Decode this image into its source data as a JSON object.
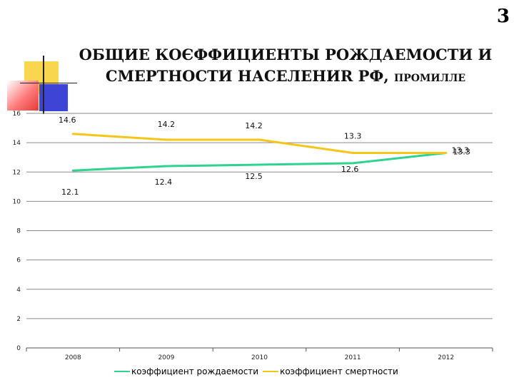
{
  "slide_number": "3",
  "title_line1": "ОБЩИЕ КОЄФФИЦИЕНТЫ РОЖДАЕМОСТИ И",
  "title_line2": "СМЕРТНОСТИ НАСЕЛЕНИR РФ,",
  "title_unit": "ПРОМИЛЛЕ",
  "colors": {
    "birth": "#2ed48e",
    "death": "#f5c518",
    "grid": "#8a8a8a",
    "axis_text": "#222222"
  },
  "chart_data": {
    "type": "line",
    "categories": [
      "2008",
      "2009",
      "2010",
      "2011",
      "2012"
    ],
    "ylim": [
      0,
      16
    ],
    "yticks": [
      0,
      2,
      4,
      6,
      8,
      10,
      12,
      14,
      16
    ],
    "grid": true,
    "legend_position": "bottom",
    "series": [
      {
        "name": "коэффициент рождаемости",
        "values": [
          12.1,
          12.4,
          12.5,
          12.6,
          13.3
        ],
        "labels": [
          "12.1",
          "12.4",
          "12.5",
          "12.6",
          "13.3"
        ]
      },
      {
        "name": "коэффициент смертности",
        "values": [
          14.6,
          14.2,
          14.2,
          13.3,
          13.3
        ],
        "labels": [
          "14.6",
          "14.2",
          "14.2",
          "13.3",
          "13.3"
        ]
      }
    ]
  }
}
